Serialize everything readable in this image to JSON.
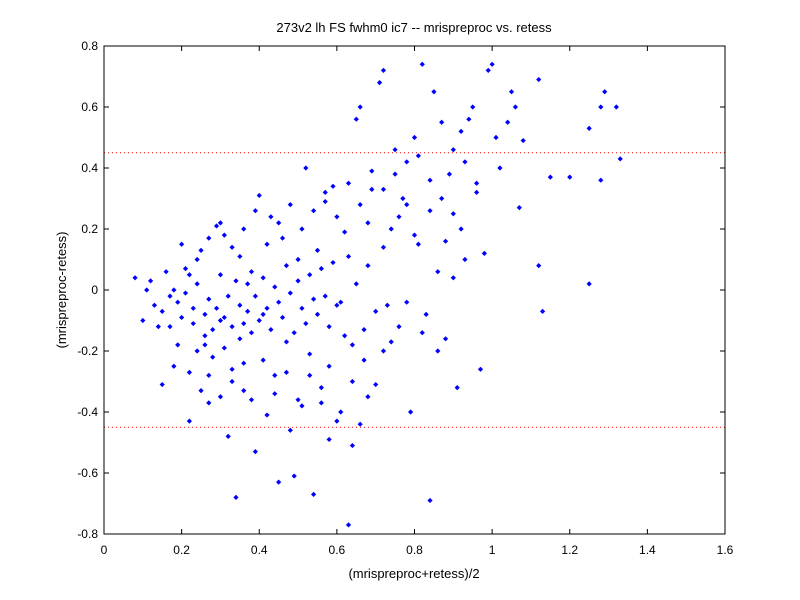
{
  "chart_data": {
    "type": "scatter",
    "title": "273v2 lh FS fwhm0 ic7 -- mrispreproc vs. retess",
    "xlabel": "(mrispreproc+retess)/2",
    "ylabel": "(mrispreproc-retess)",
    "xlim": [
      0,
      1.6
    ],
    "ylim": [
      -0.8,
      0.8
    ],
    "x_ticks": [
      "0",
      "0.2",
      "0.4",
      "0.6",
      "0.8",
      "1",
      "1.2",
      "1.4",
      "1.6"
    ],
    "y_ticks": [
      "-0.8",
      "-0.6",
      "-0.4",
      "-0.2",
      "0",
      "0.2",
      "0.4",
      "0.6",
      "0.8"
    ],
    "x_tick_values": [
      0,
      0.2,
      0.4,
      0.6,
      0.8,
      1.0,
      1.2,
      1.4,
      1.6
    ],
    "y_tick_values": [
      -0.8,
      -0.6,
      -0.4,
      -0.2,
      0,
      0.2,
      0.4,
      0.6,
      0.8
    ],
    "grid": false,
    "marker_color": "#0000ff",
    "reference_lines": {
      "color": "#ff0000",
      "style": "dotted",
      "y_values": [
        0.45,
        -0.45
      ]
    },
    "series": [
      {
        "points": [
          [
            0.08,
            0.04
          ],
          [
            0.1,
            -0.1
          ],
          [
            0.12,
            0.03
          ],
          [
            0.13,
            -0.05
          ],
          [
            0.14,
            -0.12
          ],
          [
            0.15,
            -0.31
          ],
          [
            0.16,
            0.06
          ],
          [
            0.17,
            -0.02
          ],
          [
            0.18,
            0.0
          ],
          [
            0.19,
            -0.18
          ],
          [
            0.2,
            -0.09
          ],
          [
            0.21,
            0.07
          ],
          [
            0.22,
            -0.43
          ],
          [
            0.23,
            -0.06
          ],
          [
            0.24,
            -0.2
          ],
          [
            0.25,
            0.13
          ],
          [
            0.26,
            -0.15
          ],
          [
            0.27,
            -0.37
          ],
          [
            0.28,
            -0.22
          ],
          [
            0.29,
            0.21
          ],
          [
            0.3,
            -0.1
          ],
          [
            0.31,
            0.18
          ],
          [
            0.32,
            -0.48
          ],
          [
            0.33,
            -0.26
          ],
          [
            0.34,
            -0.68
          ],
          [
            0.35,
            0.11
          ],
          [
            0.36,
            -0.33
          ],
          [
            0.37,
            0.02
          ],
          [
            0.38,
            -0.14
          ],
          [
            0.39,
            -0.53
          ],
          [
            0.4,
            0.31
          ],
          [
            0.41,
            -0.08
          ],
          [
            0.42,
            -0.41
          ],
          [
            0.43,
            0.24
          ],
          [
            0.44,
            -0.28
          ],
          [
            0.45,
            -0.63
          ],
          [
            0.46,
            0.17
          ],
          [
            0.47,
            -0.17
          ],
          [
            0.48,
            -0.46
          ],
          [
            0.49,
            -0.61
          ],
          [
            0.5,
            0.1
          ],
          [
            0.51,
            -0.38
          ],
          [
            0.52,
            0.4
          ],
          [
            0.53,
            -0.21
          ],
          [
            0.54,
            -0.67
          ],
          [
            0.55,
            0.13
          ],
          [
            0.56,
            -0.32
          ],
          [
            0.57,
            0.29
          ],
          [
            0.58,
            -0.49
          ],
          [
            0.59,
            0.34
          ],
          [
            0.6,
            -0.43
          ],
          [
            0.61,
            -0.04
          ],
          [
            0.62,
            0.19
          ],
          [
            0.63,
            -0.77
          ],
          [
            0.64,
            -0.51
          ],
          [
            0.65,
            0.56
          ],
          [
            0.66,
            0.6
          ],
          [
            0.67,
            -0.23
          ],
          [
            0.68,
            0.08
          ],
          [
            0.69,
            0.33
          ],
          [
            0.7,
            -0.31
          ],
          [
            0.71,
            0.68
          ],
          [
            0.72,
            0.72
          ],
          [
            0.73,
            -0.05
          ],
          [
            0.74,
            0.2
          ],
          [
            0.75,
            0.46
          ],
          [
            0.76,
            -0.12
          ],
          [
            0.77,
            0.3
          ],
          [
            0.78,
            0.42
          ],
          [
            0.79,
            -0.4
          ],
          [
            0.8,
            0.5
          ],
          [
            0.81,
            0.15
          ],
          [
            0.82,
            0.74
          ],
          [
            0.83,
            -0.08
          ],
          [
            0.84,
            -0.69
          ],
          [
            0.85,
            0.65
          ],
          [
            0.86,
            0.06
          ],
          [
            0.87,
            0.55
          ],
          [
            0.88,
            -0.16
          ],
          [
            0.89,
            0.38
          ],
          [
            0.9,
            0.25
          ],
          [
            0.91,
            -0.32
          ],
          [
            0.92,
            0.52
          ],
          [
            0.93,
            0.1
          ],
          [
            0.94,
            0.56
          ],
          [
            0.95,
            0.6
          ],
          [
            0.96,
            0.32
          ],
          [
            0.97,
            -0.26
          ],
          [
            0.98,
            0.12
          ],
          [
            0.99,
            0.72
          ],
          [
            1.0,
            0.74
          ],
          [
            1.01,
            0.5
          ],
          [
            1.02,
            0.4
          ],
          [
            1.04,
            0.55
          ],
          [
            1.05,
            0.65
          ],
          [
            1.06,
            0.6
          ],
          [
            1.07,
            0.27
          ],
          [
            1.08,
            0.49
          ],
          [
            1.12,
            0.69
          ],
          [
            1.13,
            -0.07
          ],
          [
            1.12,
            0.08
          ],
          [
            1.15,
            0.37
          ],
          [
            1.2,
            0.37
          ],
          [
            1.25,
            0.53
          ],
          [
            1.25,
            0.02
          ],
          [
            1.28,
            0.36
          ],
          [
            1.28,
            0.6
          ],
          [
            1.29,
            0.65
          ],
          [
            1.32,
            0.6
          ],
          [
            1.33,
            0.43
          ],
          [
            0.11,
            0.0
          ],
          [
            0.15,
            -0.07
          ],
          [
            0.17,
            -0.12
          ],
          [
            0.19,
            -0.04
          ],
          [
            0.21,
            -0.01
          ],
          [
            0.23,
            -0.11
          ],
          [
            0.24,
            0.02
          ],
          [
            0.26,
            -0.08
          ],
          [
            0.27,
            -0.03
          ],
          [
            0.28,
            -0.13
          ],
          [
            0.29,
            -0.06
          ],
          [
            0.3,
            0.05
          ],
          [
            0.31,
            -0.09
          ],
          [
            0.32,
            -0.02
          ],
          [
            0.33,
            -0.12
          ],
          [
            0.34,
            0.03
          ],
          [
            0.35,
            -0.05
          ],
          [
            0.36,
            -0.11
          ],
          [
            0.37,
            -0.07
          ],
          [
            0.38,
            0.06
          ],
          [
            0.39,
            -0.02
          ],
          [
            0.4,
            -0.1
          ],
          [
            0.41,
            0.04
          ],
          [
            0.42,
            -0.06
          ],
          [
            0.43,
            -0.13
          ],
          [
            0.44,
            0.01
          ],
          [
            0.45,
            -0.04
          ],
          [
            0.46,
            -0.09
          ],
          [
            0.47,
            0.08
          ],
          [
            0.48,
            -0.01
          ],
          [
            0.49,
            -0.14
          ],
          [
            0.5,
            0.03
          ],
          [
            0.51,
            -0.06
          ],
          [
            0.52,
            -0.11
          ],
          [
            0.53,
            0.05
          ],
          [
            0.54,
            -0.03
          ],
          [
            0.55,
            -0.08
          ],
          [
            0.56,
            0.07
          ],
          [
            0.57,
            -0.02
          ],
          [
            0.58,
            -0.12
          ],
          [
            0.59,
            0.09
          ],
          [
            0.6,
            -0.05
          ],
          [
            0.62,
            -0.15
          ],
          [
            0.63,
            0.11
          ],
          [
            0.64,
            -0.18
          ],
          [
            0.65,
            0.02
          ],
          [
            0.67,
            -0.13
          ],
          [
            0.68,
            0.22
          ],
          [
            0.7,
            -0.07
          ],
          [
            0.72,
            0.14
          ],
          [
            0.74,
            -0.17
          ],
          [
            0.76,
            0.24
          ],
          [
            0.78,
            -0.04
          ],
          [
            0.8,
            0.18
          ],
          [
            0.82,
            -0.14
          ],
          [
            0.84,
            0.26
          ],
          [
            0.86,
            -0.2
          ],
          [
            0.88,
            0.16
          ],
          [
            0.9,
            0.04
          ],
          [
            0.92,
            0.2
          ],
          [
            0.18,
            -0.25
          ],
          [
            0.22,
            -0.27
          ],
          [
            0.25,
            -0.33
          ],
          [
            0.27,
            -0.28
          ],
          [
            0.3,
            -0.35
          ],
          [
            0.33,
            -0.3
          ],
          [
            0.36,
            -0.24
          ],
          [
            0.38,
            -0.36
          ],
          [
            0.41,
            -0.23
          ],
          [
            0.44,
            -0.34
          ],
          [
            0.47,
            -0.27
          ],
          [
            0.5,
            -0.36
          ],
          [
            0.53,
            -0.28
          ],
          [
            0.56,
            -0.37
          ],
          [
            0.58,
            -0.25
          ],
          [
            0.61,
            -0.4
          ],
          [
            0.64,
            -0.3
          ],
          [
            0.66,
            -0.44
          ],
          [
            0.68,
            -0.35
          ],
          [
            0.72,
            -0.2
          ],
          [
            0.2,
            0.15
          ],
          [
            0.24,
            0.1
          ],
          [
            0.27,
            0.17
          ],
          [
            0.3,
            0.22
          ],
          [
            0.33,
            0.14
          ],
          [
            0.36,
            0.2
          ],
          [
            0.39,
            0.26
          ],
          [
            0.42,
            0.15
          ],
          [
            0.45,
            0.22
          ],
          [
            0.48,
            0.28
          ],
          [
            0.51,
            0.2
          ],
          [
            0.54,
            0.26
          ],
          [
            0.57,
            0.32
          ],
          [
            0.6,
            0.24
          ],
          [
            0.63,
            0.35
          ],
          [
            0.66,
            0.28
          ],
          [
            0.69,
            0.39
          ],
          [
            0.72,
            0.33
          ],
          [
            0.75,
            0.38
          ],
          [
            0.78,
            0.28
          ],
          [
            0.81,
            0.44
          ],
          [
            0.84,
            0.36
          ],
          [
            0.87,
            0.3
          ],
          [
            0.9,
            0.46
          ],
          [
            0.93,
            0.42
          ],
          [
            0.96,
            0.35
          ],
          [
            0.22,
            0.05
          ],
          [
            0.26,
            -0.18
          ],
          [
            0.31,
            -0.19
          ],
          [
            0.35,
            -0.16
          ]
        ]
      }
    ]
  }
}
